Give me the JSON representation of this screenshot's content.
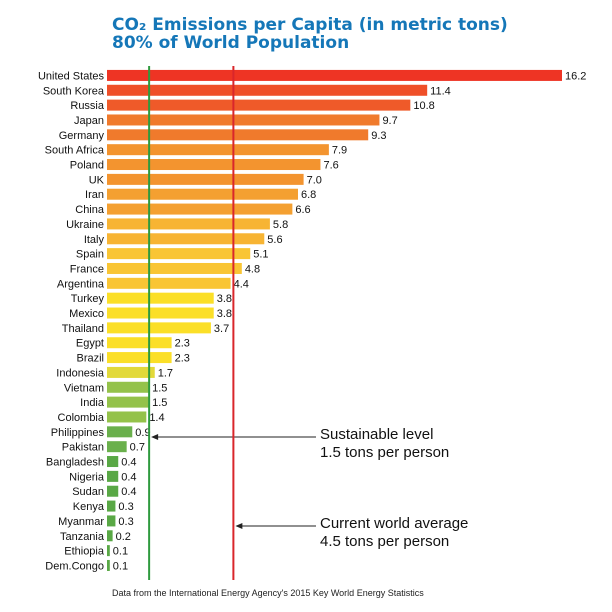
{
  "title_line1": "CO₂ Emissions per Capita (in metric tons)",
  "title_line2": "80% of World Population",
  "source": "Data from the International Energy Agency's 2015 Key World Energy Statistics",
  "chart_data": {
    "type": "bar",
    "orientation": "horizontal",
    "title": "CO₂ Emissions per Capita (in metric tons) 80% of World Population",
    "categories": [
      "United States",
      "South Korea",
      "Russia",
      "Japan",
      "Germany",
      "South Africa",
      "Poland",
      "UK",
      "Iran",
      "China",
      "Ukraine",
      "Italy",
      "Spain",
      "France",
      "Argentina",
      "Turkey",
      "Mexico",
      "Thailand",
      "Egypt",
      "Brazil",
      "Indonesia",
      "Vietnam",
      "India",
      "Colombia",
      "Philippines",
      "Pakistan",
      "Bangladesh",
      "Nigeria",
      "Sudan",
      "Kenya",
      "Myanmar",
      "Tanzania",
      "Ethiopia",
      "Dem.Congo"
    ],
    "values": [
      16.2,
      11.4,
      10.8,
      9.7,
      9.3,
      7.9,
      7.6,
      7.0,
      6.8,
      6.6,
      5.8,
      5.6,
      5.1,
      4.8,
      4.4,
      3.8,
      3.8,
      3.7,
      2.3,
      2.3,
      1.7,
      1.5,
      1.5,
      1.4,
      0.9,
      0.7,
      0.4,
      0.4,
      0.4,
      0.3,
      0.3,
      0.2,
      0.1,
      0.1
    ],
    "value_labels": [
      "16.2",
      "11.4",
      "10.8",
      "9.7",
      "9.3",
      "7.9",
      "7.6",
      "7.0",
      "6.8",
      "6.6",
      "5.8",
      "5.6",
      "5.1",
      "4.8",
      "4.4",
      "3.8",
      "3.8",
      "3.7",
      "2.3",
      "2.3",
      "1.7",
      "1.5",
      "1.5",
      "1.4",
      "0.9",
      "0.7",
      "0.4",
      "0.4",
      "0.4",
      "0.3",
      "0.3",
      "0.2",
      "0.1",
      "0.1"
    ],
    "bar_colors": [
      "#ee3424",
      "#ef4f28",
      "#ef5a29",
      "#f07a2c",
      "#f07a2c",
      "#f3942f",
      "#f3942f",
      "#f3942f",
      "#f4a031",
      "#f4a031",
      "#f7b433",
      "#f7b433",
      "#f9c534",
      "#f9c534",
      "#f9c534",
      "#fbdf28",
      "#fbdf28",
      "#fbdf28",
      "#fbdf28",
      "#fbdf28",
      "#e2d93a",
      "#94c24a",
      "#94c24a",
      "#94c24a",
      "#6ab04c",
      "#6ab04c",
      "#59a845",
      "#59a845",
      "#59a845",
      "#59a845",
      "#59a845",
      "#59a845",
      "#59a845",
      "#59a845"
    ],
    "xlim": [
      0,
      16.2
    ],
    "reference_lines": [
      {
        "value": 1.5,
        "color": "#2e9a3e",
        "label_line1": "Sustainable level",
        "label_line2": "1.5 tons per person"
      },
      {
        "value": 4.5,
        "color": "#d9262b",
        "label_line1": "Current world average",
        "label_line2": "4.5 tons per person"
      }
    ]
  }
}
